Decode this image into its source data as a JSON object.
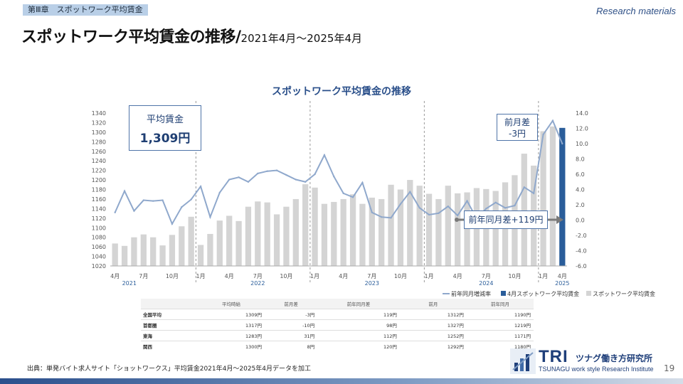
{
  "header": {
    "chapter_tag": "第Ⅲ章　スポットワーク平均賃金",
    "research_label": "Research materials",
    "title_main": "スポットワーク平均賃金の推移/",
    "title_sub": "2021年4月～2025年4月"
  },
  "annotations": {
    "avg_label": "平均賃金",
    "avg_value": "1,309円",
    "mom_label": "前月差",
    "mom_value": "-3円",
    "yoy_label": "前年同月差+119円"
  },
  "legend": {
    "yoy_line": "前年同月増減率",
    "latest_bar": "4月スポットワーク平均賃金",
    "bars": "スポットワーク平均賃金"
  },
  "colors": {
    "bar": "#d4d4d4",
    "latest_bar": "#2a5d9a",
    "line": "#8fa8cc",
    "axis_text": "#555555",
    "annotation": "#1f3f73"
  },
  "chart_data": {
    "type": "bar",
    "title": "スポットワーク平均賃金の推移",
    "x_tick_labels": [
      "4月",
      "7月",
      "10月",
      "1月",
      "4月",
      "7月",
      "10月",
      "1月",
      "4月",
      "7月",
      "10月",
      "1月",
      "4月",
      "7月",
      "10月",
      "1月",
      "4月"
    ],
    "year_labels": [
      "2021",
      "2022",
      "2023",
      "2024",
      "2025"
    ],
    "ylim_left": [
      1020,
      1340
    ],
    "left_ticks": [
      1340,
      1320,
      1300,
      1280,
      1260,
      1240,
      1220,
      1200,
      1180,
      1160,
      1140,
      1120,
      1100,
      1080,
      1060,
      1040,
      1020
    ],
    "ylim_right": [
      -6.0,
      14.0
    ],
    "right_ticks": [
      "14.0",
      "12.0",
      "10.0",
      "8.0",
      "6.0",
      "4.0",
      "2.0",
      "0.0",
      "-2.0",
      "-4.0",
      "-6.0"
    ],
    "series": [
      {
        "name": "スポットワーク平均賃金",
        "type": "bar",
        "axis": "left",
        "values": [
          1067,
          1062,
          1080,
          1086,
          1080,
          1063,
          1085,
          1103,
          1123,
          1064,
          1087,
          1115,
          1125,
          1114,
          1144,
          1155,
          1153,
          1128,
          1144,
          1160,
          1191,
          1184,
          1150,
          1154,
          1160,
          1170,
          1150,
          1163,
          1160,
          1190,
          1180,
          1200,
          1188,
          1171,
          1160,
          1188,
          1172,
          1174,
          1183,
          1181,
          1177,
          1195,
          1210,
          1255,
          1230,
          1302,
          1312,
          1309
        ]
      },
      {
        "name": "前年同月増減率",
        "type": "line",
        "axis": "right",
        "values": [
          1.0,
          3.8,
          1.2,
          2.6,
          2.5,
          2.6,
          -0.5,
          1.7,
          2.7,
          4.4,
          0.4,
          3.6,
          5.3,
          5.6,
          5.0,
          6.1,
          6.4,
          6.5,
          5.9,
          5.3,
          5.0,
          6.0,
          8.5,
          5.7,
          3.5,
          3.0,
          4.9,
          1.0,
          0.4,
          0.3,
          2.1,
          3.7,
          1.6,
          0.7,
          0.9,
          1.8,
          0.6,
          2.5,
          0.2,
          1.5,
          2.3,
          1.6,
          1.9,
          4.3,
          3.5,
          11.2,
          13.0,
          10.0
        ]
      }
    ],
    "latest": {
      "label": "4月スポットワーク平均賃金",
      "value": 1309
    }
  },
  "table": {
    "headers": [
      "平均時給",
      "前月差",
      "前年同月差",
      "前月",
      "前年同月"
    ],
    "rows": [
      {
        "name": "全国平均",
        "cells": [
          "1309円",
          "-3円",
          "119円",
          "1312円",
          "1190円"
        ]
      },
      {
        "name": "首都圏",
        "cells": [
          "1317円",
          "-10円",
          "98円",
          "1327円",
          "1219円"
        ]
      },
      {
        "name": "東海",
        "cells": [
          "1283円",
          "31円",
          "112円",
          "1252円",
          "1171円"
        ]
      },
      {
        "name": "関西",
        "cells": [
          "1300円",
          "8円",
          "120円",
          "1292円",
          "1180円"
        ]
      }
    ]
  },
  "footer": {
    "source": "出典：単発バイト求人サイト「ショットワークス」平均賃金2021年4月～2025年4月データを加工",
    "logo_main": "TRI",
    "logo_jp": "ツナグ働き方研究所",
    "logo_en": "TSUNAGU work style Research Institute",
    "page_number": "19"
  }
}
